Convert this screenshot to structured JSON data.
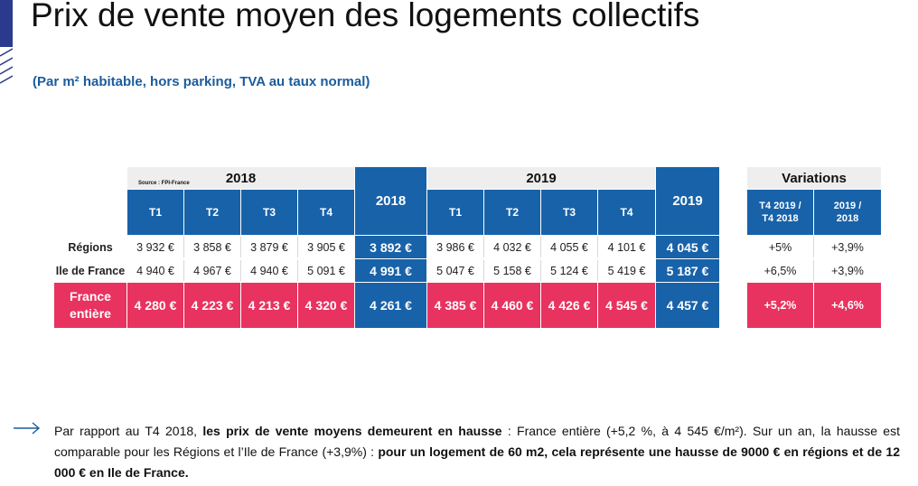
{
  "title": "Prix de vente moyen des logements collectifs",
  "subtitle": "(Par m² habitable, hors parking, TVA au taux normal)",
  "source": "Source : FPI-France",
  "table": {
    "year_2018": "2018",
    "year_2019": "2019",
    "quarters": [
      "T1",
      "T2",
      "T3",
      "T4"
    ],
    "rows": [
      {
        "label": "Régions",
        "q2018": [
          "3 932 €",
          "3 858 €",
          "3 879 €",
          "3 905 €"
        ],
        "total2018": "3 892 €",
        "q2019": [
          "3 986 €",
          "4 032 €",
          "4 055 €",
          "4 101 €"
        ],
        "total2019": "4 045 €"
      },
      {
        "label": "Ile de France",
        "q2018": [
          "4 940 €",
          "4 967 €",
          "4 940 €",
          "5 091 €"
        ],
        "total2018": "4 991 €",
        "q2019": [
          "5 047 €",
          "5 158 €",
          "5 124 €",
          "5 419 €"
        ],
        "total2019": "5 187 €"
      },
      {
        "label_line1": "France",
        "label_line2": "entière",
        "q2018": [
          "4 280 €",
          "4 223 €",
          "4 213 €",
          "4 320 €"
        ],
        "total2018": "4 261 €",
        "q2019": [
          "4 385 €",
          "4 460 €",
          "4 426 €",
          "4 545 €"
        ],
        "total2019": "4 457 €"
      }
    ]
  },
  "variations": {
    "title": "Variations",
    "col1_line1": "T4 2019 /",
    "col1_line2": "T4 2018",
    "col2_line1": "2019 /",
    "col2_line2": "2018",
    "rows": [
      [
        "+5%",
        "+3,9%"
      ],
      [
        "+6,5%",
        "+3,9%"
      ],
      [
        "+5,2%",
        "+4,6%"
      ]
    ]
  },
  "paragraph": {
    "p1": "Par rapport au T4 2018, ",
    "b1": "les prix de vente moyens demeurent en hausse",
    "p2": " : France entière (+5,2 %, à 4 545 €/m²). Sur un an, la hausse est comparable pour les Régions et l’Ile de France (+3,9%) : ",
    "b2": "pour un logement de 60 m2, cela représente une hausse de 9000 € en régions et de 12 000 € en Ile de France."
  },
  "colors": {
    "blue": "#1862a9",
    "pink": "#e8325f",
    "subtitle": "#1b5c9c",
    "header_gray": "#eeeeee"
  }
}
